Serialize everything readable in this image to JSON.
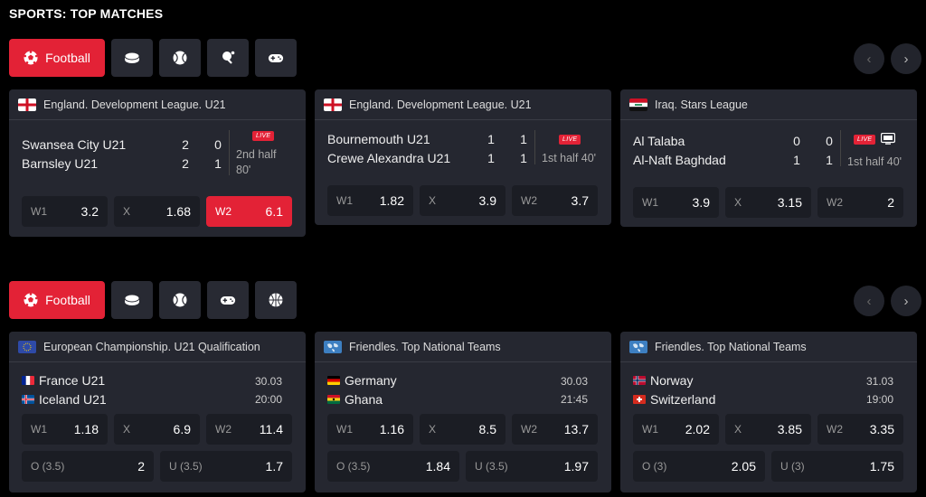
{
  "title": "SPORTS: TOP MATCHES",
  "section1": {
    "active_tab": "Football",
    "tabs": [
      "hockey-puck-icon",
      "tennis-ball-icon",
      "table-tennis-icon",
      "gamepad-icon"
    ],
    "matches": [
      {
        "league": "England. Development League. U21",
        "team1": "Swansea City U21",
        "team2": "Barnsley U21",
        "s1a": "2",
        "s1b": "0",
        "s2a": "2",
        "s2b": "1",
        "live": "LIVE",
        "period": "2nd half",
        "minute": "80'",
        "odds": [
          {
            "l": "W1",
            "v": "3.2"
          },
          {
            "l": "X",
            "v": "1.68"
          },
          {
            "l": "W2",
            "v": "6.1"
          }
        ]
      },
      {
        "league": "England. Development League. U21",
        "team1": "Bournemouth U21",
        "team2": "Crewe Alexandra U21",
        "s1a": "1",
        "s1b": "1",
        "s2a": "1",
        "s2b": "1",
        "live": "LIVE",
        "period": "1st half 40'",
        "odds": [
          {
            "l": "W1",
            "v": "1.82"
          },
          {
            "l": "X",
            "v": "3.9"
          },
          {
            "l": "W2",
            "v": "3.7"
          }
        ]
      },
      {
        "league": "Iraq. Stars League",
        "team1": "Al Talaba",
        "team2": "Al-Naft Baghdad",
        "s1a": "0",
        "s1b": "0",
        "s2a": "1",
        "s2b": "1",
        "live": "LIVE",
        "period": "1st half 40'",
        "odds": [
          {
            "l": "W1",
            "v": "3.9"
          },
          {
            "l": "X",
            "v": "3.15"
          },
          {
            "l": "W2",
            "v": "2"
          }
        ]
      }
    ]
  },
  "section2": {
    "active_tab": "Football",
    "tabs": [
      "hockey-puck-icon",
      "tennis-ball-icon",
      "gamepad-icon",
      "basketball-icon"
    ],
    "matches": [
      {
        "league": "European Championship. U21 Qualification",
        "team1": "France U21",
        "team2": "Iceland U21",
        "date": "30.03",
        "time": "20:00",
        "odds": [
          {
            "l": "W1",
            "v": "1.18"
          },
          {
            "l": "X",
            "v": "6.9"
          },
          {
            "l": "W2",
            "v": "11.4"
          }
        ],
        "totals": [
          {
            "l": "O (3.5)",
            "v": "2"
          },
          {
            "l": "U (3.5)",
            "v": "1.7"
          }
        ]
      },
      {
        "league": "Friendles. Top National Teams",
        "team1": "Germany",
        "team2": "Ghana",
        "date": "30.03",
        "time": "21:45",
        "odds": [
          {
            "l": "W1",
            "v": "1.16"
          },
          {
            "l": "X",
            "v": "8.5"
          },
          {
            "l": "W2",
            "v": "13.7"
          }
        ],
        "totals": [
          {
            "l": "O (3.5)",
            "v": "1.84"
          },
          {
            "l": "U (3.5)",
            "v": "1.97"
          }
        ]
      },
      {
        "league": "Friendles. Top National Teams",
        "team1": "Norway",
        "team2": "Switzerland",
        "date": "31.03",
        "time": "19:00",
        "odds": [
          {
            "l": "W1",
            "v": "2.02"
          },
          {
            "l": "X",
            "v": "3.85"
          },
          {
            "l": "W2",
            "v": "3.35"
          }
        ],
        "totals": [
          {
            "l": "O (3)",
            "v": "2.05"
          },
          {
            "l": "U (3)",
            "v": "1.75"
          }
        ]
      }
    ]
  },
  "nav": {
    "prev": "‹",
    "next": "›"
  },
  "colors": {
    "accent": "#e32236",
    "card": "#252730",
    "odd": "#1b1d24"
  }
}
